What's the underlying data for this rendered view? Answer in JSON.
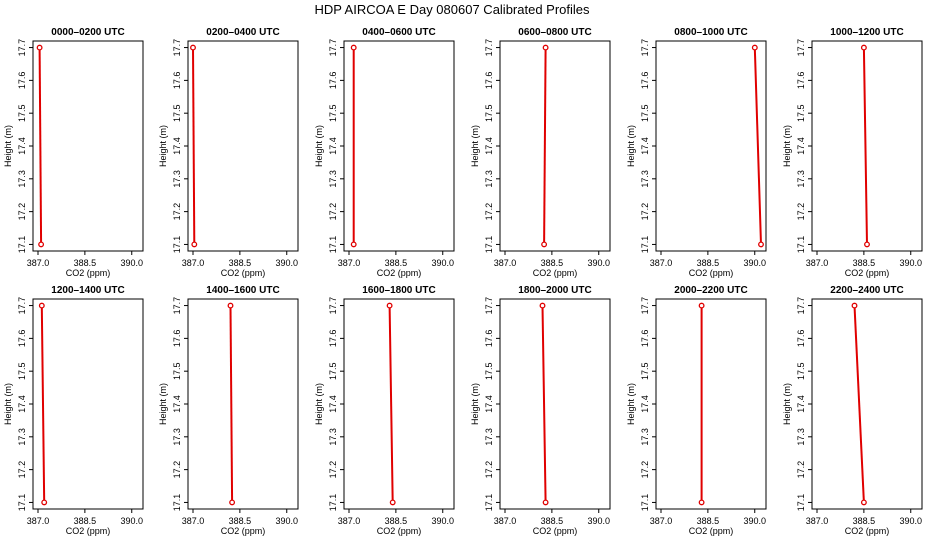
{
  "figure": {
    "title": "HDP AIRCOA E  Day 080607  Calibrated Profiles",
    "line_color": "#e00000",
    "axis_color": "#000000"
  },
  "chart_data": [
    {
      "type": "line",
      "title": "0000–0200 UTC",
      "xlabel": "CO2 (ppm)",
      "ylabel": "Height (m)",
      "xlim": [
        387.0,
        390.2
      ],
      "ylim": [
        17.08,
        17.72
      ],
      "xticks": [
        "387.0",
        "388.5",
        "390.0"
      ],
      "yticks": [
        "17.1",
        "17.2",
        "17.3",
        "17.4",
        "17.5",
        "17.6",
        "17.7"
      ],
      "x": [
        387.05,
        387.1
      ],
      "y": [
        17.7,
        17.1
      ],
      "grid": false
    },
    {
      "type": "line",
      "title": "0200–0400 UTC",
      "xlabel": "CO2 (ppm)",
      "ylabel": "Height (m)",
      "xlim": [
        387.0,
        390.2
      ],
      "ylim": [
        17.08,
        17.72
      ],
      "xticks": [
        "387.0",
        "388.5",
        "390.0"
      ],
      "yticks": [
        "17.1",
        "17.2",
        "17.3",
        "17.4",
        "17.5",
        "17.6",
        "17.7"
      ],
      "x": [
        387.0,
        387.04
      ],
      "y": [
        17.7,
        17.1
      ],
      "grid": false
    },
    {
      "type": "line",
      "title": "0400–0600 UTC",
      "xlabel": "CO2 (ppm)",
      "ylabel": "Height (m)",
      "xlim": [
        387.0,
        390.2
      ],
      "ylim": [
        17.08,
        17.72
      ],
      "xticks": [
        "387.0",
        "388.5",
        "390.0"
      ],
      "yticks": [
        "17.1",
        "17.2",
        "17.3",
        "17.4",
        "17.5",
        "17.6",
        "17.7"
      ],
      "x": [
        387.15,
        387.15
      ],
      "y": [
        17.7,
        17.1
      ],
      "grid": false
    },
    {
      "type": "line",
      "title": "0600–0800 UTC",
      "xlabel": "CO2 (ppm)",
      "ylabel": "Height (m)",
      "xlim": [
        387.0,
        390.2
      ],
      "ylim": [
        17.08,
        17.72
      ],
      "xticks": [
        "387.0",
        "388.5",
        "390.0"
      ],
      "yticks": [
        "17.1",
        "17.2",
        "17.3",
        "17.4",
        "17.5",
        "17.6",
        "17.7"
      ],
      "x": [
        388.3,
        388.25
      ],
      "y": [
        17.7,
        17.1
      ],
      "grid": false
    },
    {
      "type": "line",
      "title": "0800–1000 UTC",
      "xlabel": "CO2 (ppm)",
      "ylabel": "Height (m)",
      "xlim": [
        387.0,
        390.2
      ],
      "ylim": [
        17.08,
        17.72
      ],
      "xticks": [
        "387.0",
        "388.5",
        "390.0"
      ],
      "yticks": [
        "17.1",
        "17.2",
        "17.3",
        "17.4",
        "17.5",
        "17.6",
        "17.7"
      ],
      "x": [
        390.0,
        390.2
      ],
      "y": [
        17.7,
        17.1
      ],
      "grid": false
    },
    {
      "type": "line",
      "title": "1000–1200 UTC",
      "xlabel": "CO2 (ppm)",
      "ylabel": "Height (m)",
      "xlim": [
        387.0,
        390.2
      ],
      "ylim": [
        17.08,
        17.72
      ],
      "xticks": [
        "387.0",
        "388.5",
        "390.0"
      ],
      "yticks": [
        "17.1",
        "17.2",
        "17.3",
        "17.4",
        "17.5",
        "17.6",
        "17.7"
      ],
      "x": [
        388.5,
        388.6
      ],
      "y": [
        17.7,
        17.1
      ],
      "grid": false
    },
    {
      "type": "line",
      "title": "1200–1400 UTC",
      "xlabel": "CO2 (ppm)",
      "ylabel": "Height (m)",
      "xlim": [
        387.0,
        390.2
      ],
      "ylim": [
        17.08,
        17.72
      ],
      "xticks": [
        "387.0",
        "388.5",
        "390.0"
      ],
      "yticks": [
        "17.1",
        "17.2",
        "17.3",
        "17.4",
        "17.5",
        "17.6",
        "17.7"
      ],
      "x": [
        387.12,
        387.2
      ],
      "y": [
        17.7,
        17.1
      ],
      "grid": false
    },
    {
      "type": "line",
      "title": "1400–1600 UTC",
      "xlabel": "CO2 (ppm)",
      "ylabel": "Height (m)",
      "xlim": [
        387.0,
        390.2
      ],
      "ylim": [
        17.08,
        17.72
      ],
      "xticks": [
        "387.0",
        "388.5",
        "390.0"
      ],
      "yticks": [
        "17.1",
        "17.2",
        "17.3",
        "17.4",
        "17.5",
        "17.6",
        "17.7"
      ],
      "x": [
        388.2,
        388.25
      ],
      "y": [
        17.7,
        17.1
      ],
      "grid": false
    },
    {
      "type": "line",
      "title": "1600–1800 UTC",
      "xlabel": "CO2 (ppm)",
      "ylabel": "Height (m)",
      "xlim": [
        387.0,
        390.2
      ],
      "ylim": [
        17.08,
        17.72
      ],
      "xticks": [
        "387.0",
        "388.5",
        "390.0"
      ],
      "yticks": [
        "17.1",
        "17.2",
        "17.3",
        "17.4",
        "17.5",
        "17.6",
        "17.7"
      ],
      "x": [
        388.3,
        388.4
      ],
      "y": [
        17.7,
        17.1
      ],
      "grid": false
    },
    {
      "type": "line",
      "title": "1800–2000 UTC",
      "xlabel": "CO2 (ppm)",
      "ylabel": "Height (m)",
      "xlim": [
        387.0,
        390.2
      ],
      "ylim": [
        17.08,
        17.72
      ],
      "xticks": [
        "387.0",
        "388.5",
        "390.0"
      ],
      "yticks": [
        "17.1",
        "17.2",
        "17.3",
        "17.4",
        "17.5",
        "17.6",
        "17.7"
      ],
      "x": [
        388.2,
        388.3
      ],
      "y": [
        17.7,
        17.1
      ],
      "grid": false
    },
    {
      "type": "line",
      "title": "2000–2200 UTC",
      "xlabel": "CO2 (ppm)",
      "ylabel": "Height (m)",
      "xlim": [
        387.0,
        390.2
      ],
      "ylim": [
        17.08,
        17.72
      ],
      "xticks": [
        "387.0",
        "388.5",
        "390.0"
      ],
      "yticks": [
        "17.1",
        "17.2",
        "17.3",
        "17.4",
        "17.5",
        "17.6",
        "17.7"
      ],
      "x": [
        388.3,
        388.3
      ],
      "y": [
        17.7,
        17.1
      ],
      "grid": false
    },
    {
      "type": "line",
      "title": "2200–2400 UTC",
      "xlabel": "CO2 (ppm)",
      "ylabel": "Height (m)",
      "xlim": [
        387.0,
        390.2
      ],
      "ylim": [
        17.08,
        17.72
      ],
      "xticks": [
        "387.0",
        "388.5",
        "390.0"
      ],
      "yticks": [
        "17.1",
        "17.2",
        "17.3",
        "17.4",
        "17.5",
        "17.6",
        "17.7"
      ],
      "x": [
        388.2,
        388.5
      ],
      "y": [
        17.7,
        17.1
      ],
      "grid": false
    }
  ]
}
